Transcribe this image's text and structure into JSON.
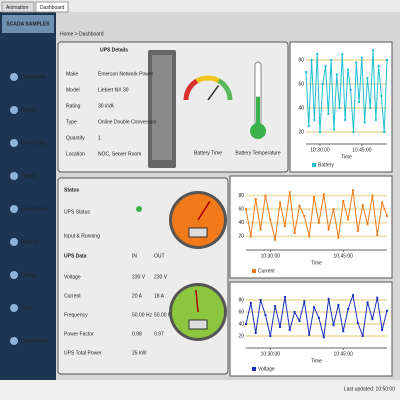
{
  "tabs": [
    "Animation",
    "Dashboard"
  ],
  "sidebar": {
    "title": "SCADA SAMPLES",
    "items": [
      "Dashboard",
      "Alarms",
      "Event Logs",
      "Trends",
      "Environment",
      "Reports",
      "Energy",
      "Tools",
      "Quick Menu"
    ]
  },
  "breadcrumb": "Home > Dashboard",
  "ups": {
    "title": "UPS Details",
    "rows": [
      [
        "Make",
        "Emerson Network Power"
      ],
      [
        "Model",
        "Liebert NX 30"
      ],
      [
        "Rating",
        "30 kVA"
      ],
      [
        "Type",
        "Online Double Conversion"
      ],
      [
        "Quantity",
        "1"
      ],
      [
        "Location",
        "NOC, Server Room"
      ]
    ]
  },
  "gauges": [
    {
      "label": "Battery Time",
      "value": 70,
      "lim": [
        0,
        100
      ]
    },
    {
      "label": "Battery Temperature",
      "value": 45,
      "lim": [
        0,
        100
      ]
    }
  ],
  "status": {
    "title": "Status",
    "rows": [
      [
        "UPS Status"
      ],
      [
        "Input & Running"
      ]
    ],
    "data_title": "UPS Data",
    "columns": [
      "IN",
      "OUT"
    ],
    "data_rows": [
      [
        "Voltage",
        "230 V",
        "230 V"
      ],
      [
        "Current",
        "20 A",
        "18 A"
      ],
      [
        "Frequency",
        "50.00 Hz",
        "50.00 Hz"
      ],
      [
        "Power Factor",
        "0.98",
        "0.97"
      ],
      [
        "UPS Total Power",
        "25 kW",
        ""
      ]
    ]
  },
  "dials": [
    {
      "value": 62,
      "lim": [
        0,
        100
      ],
      "color": "#f07a1a"
    },
    {
      "value": 48,
      "lim": [
        0,
        100
      ],
      "color": "#8cc63f"
    }
  ],
  "chart_data": [
    {
      "type": "line",
      "xlabel": "Time",
      "ylim": [
        10,
        90
      ],
      "yticks": [
        20,
        40,
        60,
        80
      ],
      "xticks": [
        {
          "value": 5,
          "label": "10:30:00"
        },
        {
          "value": 20,
          "label": "10:45:00"
        }
      ],
      "series": [
        {
          "name": "Battery",
          "color": "#1fbfcf",
          "values": [
            70,
            25,
            80,
            30,
            85,
            20,
            60,
            75,
            35,
            80,
            22,
            68,
            40,
            85,
            30,
            72,
            55,
            20,
            78,
            45,
            82,
            28,
            65,
            40,
            88,
            30,
            75,
            50,
            20,
            80
          ]
        }
      ]
    },
    {
      "type": "line",
      "xlabel": "Time",
      "ylim": [
        0,
        100
      ],
      "yticks": [
        20,
        40,
        60,
        80
      ],
      "xticks": [
        {
          "value": 5,
          "label": "10:30:00"
        },
        {
          "value": 20,
          "label": "10:45:00"
        }
      ],
      "series": [
        {
          "name": "Current",
          "color": "#f07a1a",
          "values": [
            60,
            20,
            75,
            30,
            80,
            45,
            15,
            70,
            35,
            85,
            25,
            65,
            50,
            20,
            78,
            40,
            82,
            30,
            60,
            18,
            72,
            45,
            88,
            28,
            66,
            38,
            80,
            22,
            70,
            50
          ]
        }
      ]
    },
    {
      "type": "line",
      "xlabel": "Time",
      "ylim": [
        0,
        100
      ],
      "yticks": [
        20,
        40,
        60,
        80
      ],
      "xticks": [
        {
          "value": 5,
          "label": "10:30:00"
        },
        {
          "value": 20,
          "label": "10:45:00"
        }
      ],
      "series": [
        {
          "name": "Voltage",
          "color": "#1a2fb8",
          "values": [
            40,
            75,
            25,
            80,
            55,
            20,
            70,
            35,
            85,
            30,
            60,
            45,
            78,
            22,
            68,
            50,
            18,
            82,
            38,
            72,
            28,
            65,
            88,
            42,
            20,
            76,
            48,
            84,
            30,
            62
          ]
        }
      ]
    }
  ],
  "footer": "Last updated: 10:50:00"
}
